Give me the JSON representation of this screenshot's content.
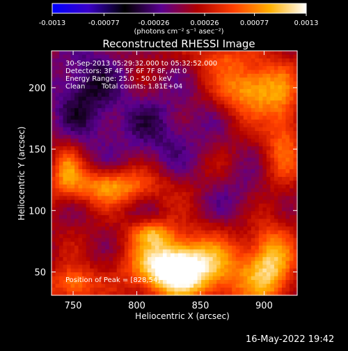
{
  "colorbar": {
    "tick_labels": [
      "-0.0013",
      "-0.00077",
      "-0.00026",
      "0.00026",
      "0.00077",
      "0.0013"
    ],
    "units": "(photons cm⁻² s⁻¹ asec⁻²)",
    "colors": [
      "#0000ff",
      "#3a00c8",
      "#000000",
      "#5a0090",
      "#b00000",
      "#ff4000",
      "#ffb000",
      "#ffffff"
    ]
  },
  "info": {
    "time": "30-Sep-2013 05:29:32.000 to 05:32:52.000",
    "detectors": "Detectors: 3F 4F 5F 6F 7F 8F, Att 0",
    "energy": "Energy Range: 25.0 - 50.0 keV",
    "clean": "Clean",
    "counts": "Total counts: 1.81E+04",
    "peak": "Position of Peak = [828,54]"
  },
  "footer": {
    "date": "16-May-2022 19:42"
  },
  "chart_data": {
    "type": "heatmap",
    "title": "Reconstructed RHESSI Image",
    "xlabel": "Heliocentric X (arcsec)",
    "ylabel": "Heliocentric Y (arcsec)",
    "x_ticks": [
      750,
      800,
      850,
      900
    ],
    "y_ticks": [
      50,
      100,
      150,
      200
    ],
    "xlim": [
      733,
      926
    ],
    "ylim": [
      31,
      230
    ],
    "value_range": [
      -0.0013,
      0.0013
    ],
    "peak": [
      828,
      54
    ],
    "sources": [
      {
        "x": 828,
        "y": 54,
        "sx": 22,
        "sy": 16,
        "amp": 0.00135
      },
      {
        "x": 812,
        "y": 82,
        "sx": 12,
        "sy": 7,
        "amp": 0.00055
      },
      {
        "x": 870,
        "y": 50,
        "sx": 30,
        "sy": 20,
        "amp": 0.0005
      },
      {
        "x": 905,
        "y": 55,
        "sx": 12,
        "sy": 22,
        "amp": 0.00075
      },
      {
        "x": 890,
        "y": 200,
        "sx": 18,
        "sy": 15,
        "amp": 0.00085
      },
      {
        "x": 915,
        "y": 165,
        "sx": 10,
        "sy": 30,
        "amp": 0.00055
      },
      {
        "x": 865,
        "y": 225,
        "sx": 18,
        "sy": 8,
        "amp": 0.00035
      },
      {
        "x": 780,
        "y": 120,
        "sx": 28,
        "sy": 10,
        "amp": 0.00075
      },
      {
        "x": 745,
        "y": 135,
        "sx": 8,
        "sy": 14,
        "amp": 0.00055
      },
      {
        "x": 750,
        "y": 40,
        "sx": 12,
        "sy": 10,
        "amp": 0.0007
      },
      {
        "x": 760,
        "y": 195,
        "sx": 20,
        "sy": 30,
        "amp": -0.00055
      },
      {
        "x": 820,
        "y": 165,
        "sx": 25,
        "sy": 25,
        "amp": -0.0004
      },
      {
        "x": 880,
        "y": 110,
        "sx": 15,
        "sy": 15,
        "amp": -0.00025
      }
    ]
  }
}
